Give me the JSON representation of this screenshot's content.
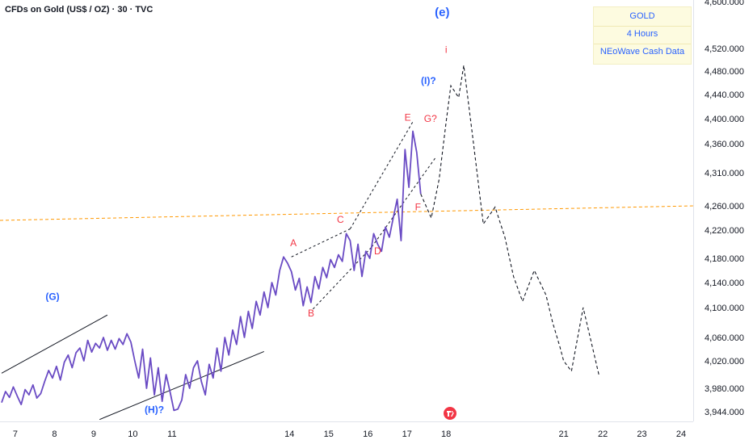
{
  "chart_title": "CFDs on Gold (US$ / OZ) · 30 · TVC",
  "legend": [
    "GOLD",
    "4 Hours",
    "NEoWave Cash Data"
  ],
  "colors": {
    "price_line": "#6a4bc4",
    "wave_label_blue": "#2962ff",
    "wave_label_red": "#f23645",
    "projection": "#131722",
    "channel": "#131722",
    "horizontal_level": "#ff9800",
    "axis_text": "#131722"
  },
  "icons": [
    "tradingview-logo-icon"
  ],
  "chart_data": {
    "type": "line",
    "title": "CFDs on Gold (US$ / OZ) · 30 · TVC",
    "xlabel": "",
    "ylabel": "",
    "x_ticks": [
      "7",
      "8",
      "9",
      "10",
      "11",
      "14",
      "15",
      "16",
      "17",
      "18",
      "21",
      "22",
      "23",
      "24"
    ],
    "y_ticks": [
      3944,
      3980,
      4020,
      4060,
      4100,
      4140,
      4180,
      4220,
      4260,
      4310,
      4360,
      4400,
      4440,
      4480,
      4520,
      4600
    ],
    "y_tick_labels": [
      "3,944.000",
      "3,980.000",
      "4,020.000",
      "4,060.000",
      "4,100.000",
      "4,140.000",
      "4,180.000",
      "4,220.000",
      "4,260.000",
      "4,310.000",
      "4,360.000",
      "4,400.000",
      "4,440.000",
      "4,480.000",
      "4,520.000",
      "4,600.000"
    ],
    "ylim": [
      3930,
      4600
    ],
    "xlim": [
      6.65,
      24.35
    ],
    "grid": false,
    "series": [
      {
        "x": [
          6.65,
          6.75,
          6.85,
          6.95,
          7.05,
          7.15,
          7.25,
          7.35,
          7.45,
          7.55,
          7.65,
          7.75,
          7.85,
          7.95,
          8.05,
          8.15,
          8.25,
          8.35,
          8.45,
          8.55,
          8.65,
          8.75,
          8.85,
          8.95,
          9.05,
          9.15,
          9.25,
          9.35,
          9.45,
          9.55,
          9.65,
          9.75,
          9.85,
          9.95,
          10.05,
          10.15,
          10.25,
          10.35,
          10.45,
          10.55,
          10.65,
          10.75,
          10.85,
          10.95,
          11.05,
          11.15,
          11.25,
          11.35,
          11.45,
          11.55,
          11.65,
          11.75,
          11.85,
          11.95,
          12.05,
          12.15,
          12.25,
          12.35,
          12.45,
          12.55,
          12.65,
          12.75,
          12.85,
          12.95,
          13.05,
          13.15,
          13.25,
          13.35,
          13.45,
          13.55,
          13.65,
          13.75,
          13.85,
          13.95,
          14.05,
          14.15,
          14.25,
          14.35,
          14.45,
          14.55,
          14.65,
          14.75,
          14.85,
          14.95,
          15.05,
          15.15,
          15.25,
          15.35,
          15.45,
          15.55,
          15.65,
          15.75,
          15.85,
          15.95,
          16.05,
          16.15,
          16.25,
          16.35,
          16.45,
          16.55,
          16.65,
          16.75,
          16.85,
          16.95,
          17.05,
          17.15,
          17.25,
          17.35
        ],
        "y": [
          3958,
          3975,
          3966,
          3982,
          3968,
          3955,
          3978,
          3970,
          3985,
          3965,
          3972,
          3990,
          4006,
          3995,
          4012,
          3992,
          4018,
          4030,
          4010,
          4034,
          4042,
          4020,
          4055,
          4035,
          4050,
          4042,
          4060,
          4038,
          4055,
          4040,
          4058,
          4048,
          4065,
          4052,
          4020,
          3995,
          4040,
          3980,
          4025,
          3970,
          4010,
          3960,
          4000,
          3975,
          3946,
          3948,
          3962,
          4000,
          3980,
          4010,
          4020,
          3990,
          3970,
          4015,
          3995,
          4042,
          4005,
          4060,
          4030,
          4070,
          4048,
          4088,
          4060,
          4095,
          4072,
          4110,
          4090,
          4125,
          4100,
          4140,
          4120,
          4160,
          4182,
          4172,
          4158,
          4128,
          4147,
          4103,
          4133,
          4108,
          4150,
          4130,
          4165,
          4148,
          4178,
          4165,
          4185,
          4175,
          4215,
          4205,
          4160,
          4200,
          4150,
          4190,
          4180,
          4215,
          4200,
          4190,
          4225,
          4210,
          4240,
          4270,
          4205,
          4350,
          4288,
          4380,
          4345,
          4278
        ]
      }
    ],
    "projection": {
      "x": [
        17.35,
        17.62,
        17.82,
        18.0,
        18.12,
        18.32,
        18.45,
        18.7,
        18.95,
        19.25,
        19.5,
        19.72,
        19.95,
        20.25,
        20.55,
        20.72,
        20.9,
        21.0,
        21.2,
        21.5,
        21.9
      ],
      "y": [
        4278,
        4240,
        4300,
        4395,
        4455,
        4435,
        4490,
        4360,
        4230,
        4258,
        4210,
        4150,
        4110,
        4160,
        4120,
        4080,
        4045,
        4020,
        4005,
        4100,
        4000
      ]
    },
    "horizontal_level": 4246,
    "wave_labels": [
      {
        "text": "(G)",
        "x": 7.95,
        "y": 4112,
        "color": "blue"
      },
      {
        "text": "(H)?",
        "x": 10.55,
        "y": 3942,
        "color": "blue"
      },
      {
        "text": "A",
        "x": 14.1,
        "y": 4197,
        "color": "red"
      },
      {
        "text": "B",
        "x": 14.55,
        "y": 4088,
        "color": "red"
      },
      {
        "text": "C",
        "x": 15.3,
        "y": 4232,
        "color": "red"
      },
      {
        "text": "D",
        "x": 16.25,
        "y": 4186,
        "color": "red"
      },
      {
        "text": "E",
        "x": 17.02,
        "y": 4397,
        "color": "red"
      },
      {
        "text": "F",
        "x": 17.28,
        "y": 4253,
        "color": "red"
      },
      {
        "text": "G?",
        "x": 17.6,
        "y": 4395,
        "color": "red"
      },
      {
        "text": "(I)?",
        "x": 17.55,
        "y": 4458,
        "color": "blue"
      },
      {
        "text": "i",
        "x": 18.0,
        "y": 4512,
        "color": "red"
      },
      {
        "text": "(e)",
        "x": 17.9,
        "y": 4575,
        "color": "blue"
      }
    ]
  }
}
